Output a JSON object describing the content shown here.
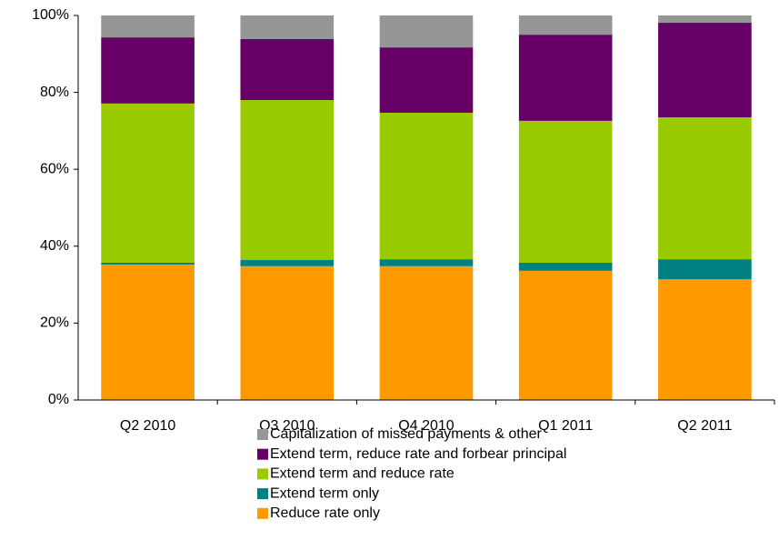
{
  "chart_data": {
    "type": "stacked_bar",
    "categories": [
      "Q2 2010",
      "Q3 2010",
      "Q4 2010",
      "Q1 2011",
      "Q2 2011"
    ],
    "series": [
      {
        "name": "Reduce rate only",
        "color": "#ff9900",
        "values": [
          35.2,
          34.8,
          34.8,
          33.6,
          31.4
        ]
      },
      {
        "name": "Extend term only",
        "color": "#008080",
        "values": [
          0.5,
          1.6,
          1.8,
          2.1,
          5.2
        ]
      },
      {
        "name": "Extend term and reduce rate",
        "color": "#99cc00",
        "values": [
          41.4,
          41.6,
          38.1,
          36.9,
          36.9
        ]
      },
      {
        "name": "Extend term, reduce rate and forbear principal",
        "color": "#660066",
        "values": [
          17.2,
          15.9,
          17.0,
          22.4,
          24.6
        ]
      },
      {
        "name": "Capitalization of missed payments & other",
        "color": "#969696",
        "values": [
          5.7,
          6.1,
          8.3,
          5.0,
          1.9
        ]
      }
    ],
    "ylim": [
      0,
      100
    ],
    "yticks": [
      {
        "value": 0,
        "label": "0%"
      },
      {
        "value": 20,
        "label": "20%"
      },
      {
        "value": 40,
        "label": "40%"
      },
      {
        "value": 60,
        "label": "60%"
      },
      {
        "value": 80,
        "label": "80%"
      },
      {
        "value": 100,
        "label": "100%"
      }
    ],
    "legend": "bottom"
  }
}
